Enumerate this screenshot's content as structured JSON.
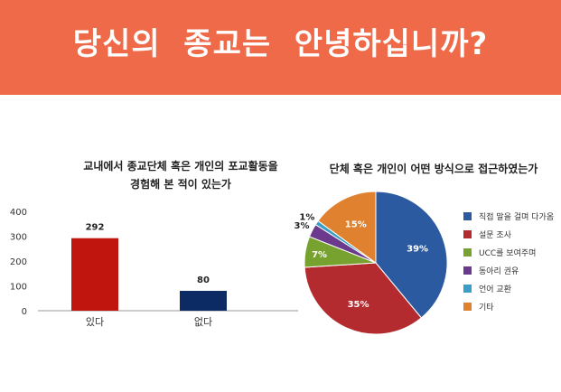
{
  "header": {
    "title": "당신의  종교는  안녕하십니까?",
    "background": "#ee6a48"
  },
  "chart_data": [
    {
      "type": "bar",
      "title": "교내에서 종교단체 혹은 개인의 포교활동을\n경험해 본 적이 있는가",
      "categories": [
        "있다",
        "없다"
      ],
      "values": [
        292,
        80
      ],
      "colors": [
        "#c0140e",
        "#0c2a63"
      ],
      "ylim": [
        0,
        400
      ],
      "yticks": [
        0,
        100,
        200,
        300,
        400
      ],
      "xlabel": "",
      "ylabel": "",
      "grid": false,
      "data_labels": true
    },
    {
      "type": "pie",
      "title": "단체 혹은 개인이 어떤 방식으로 접근하였는가",
      "labels": [
        "직접 말을 걸며 다가옴",
        "설문 조사",
        "UCC를 보여주며",
        "동아리 권유",
        "언어 교환",
        "기타"
      ],
      "values": [
        39,
        35,
        7,
        3,
        1,
        15
      ],
      "display_labels": [
        "39%",
        "35%",
        "7%",
        "3%",
        "1%",
        "15%"
      ],
      "colors": [
        "#2c5aa0",
        "#b32b2e",
        "#78a22f",
        "#6b3a8c",
        "#3a9fc6",
        "#e0812f"
      ],
      "legend": "right"
    }
  ]
}
